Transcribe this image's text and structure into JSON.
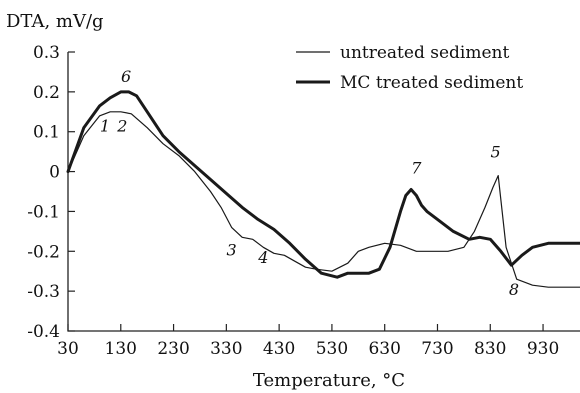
{
  "chart_data": {
    "type": "line",
    "ylabel": "DTA, mV/g",
    "xlabel": "Temperature, °C",
    "xlim": [
      30,
      1000
    ],
    "ylim": [
      -0.4,
      0.3
    ],
    "x_ticks": [
      30,
      130,
      230,
      330,
      430,
      530,
      630,
      730,
      830,
      930
    ],
    "x_tick_labels": [
      "30",
      "130",
      "230",
      "330",
      "430",
      "530",
      "630",
      "730",
      "830",
      "930"
    ],
    "y_ticks": [
      0.3,
      0.2,
      0.1,
      0,
      -0.1,
      -0.2,
      -0.3,
      -0.4
    ],
    "y_tick_labels": [
      "0.3",
      "0.2",
      "0.1",
      "0",
      "-0.1",
      "-0.2",
      "-0.3",
      "-0.4"
    ],
    "legend_position": "top-right",
    "series": [
      {
        "name": "untreated sediment",
        "style": "thin",
        "x": [
          30,
          60,
          90,
          110,
          130,
          150,
          180,
          210,
          240,
          270,
          300,
          320,
          340,
          360,
          380,
          400,
          420,
          440,
          460,
          480,
          500,
          530,
          560,
          580,
          600,
          630,
          660,
          690,
          720,
          750,
          780,
          800,
          820,
          835,
          845,
          860,
          880,
          910,
          940,
          970,
          1000
        ],
        "y": [
          0.0,
          0.09,
          0.14,
          0.15,
          0.15,
          0.145,
          0.11,
          0.07,
          0.04,
          0.0,
          -0.05,
          -0.09,
          -0.14,
          -0.165,
          -0.17,
          -0.19,
          -0.205,
          -0.21,
          -0.225,
          -0.24,
          -0.245,
          -0.25,
          -0.23,
          -0.2,
          -0.19,
          -0.18,
          -0.185,
          -0.2,
          -0.2,
          -0.2,
          -0.19,
          -0.15,
          -0.09,
          -0.04,
          -0.01,
          -0.19,
          -0.27,
          -0.285,
          -0.29,
          -0.29,
          -0.29
        ]
      },
      {
        "name": "MC treated sediment",
        "style": "thick",
        "x": [
          30,
          60,
          90,
          110,
          130,
          145,
          160,
          180,
          210,
          240,
          270,
          300,
          330,
          360,
          390,
          420,
          450,
          480,
          510,
          540,
          560,
          580,
          600,
          620,
          640,
          660,
          670,
          680,
          690,
          700,
          710,
          730,
          760,
          790,
          810,
          830,
          850,
          870,
          890,
          910,
          940,
          970,
          1000
        ],
        "y": [
          0.0,
          0.11,
          0.165,
          0.185,
          0.2,
          0.2,
          0.19,
          0.15,
          0.09,
          0.05,
          0.015,
          -0.02,
          -0.055,
          -0.09,
          -0.12,
          -0.145,
          -0.18,
          -0.22,
          -0.255,
          -0.265,
          -0.255,
          -0.255,
          -0.255,
          -0.245,
          -0.19,
          -0.1,
          -0.06,
          -0.045,
          -0.06,
          -0.085,
          -0.1,
          -0.12,
          -0.15,
          -0.17,
          -0.165,
          -0.17,
          -0.2,
          -0.235,
          -0.21,
          -0.19,
          -0.18,
          -0.18,
          -0.18
        ]
      }
    ],
    "annotations": [
      {
        "text": "1",
        "x": 100,
        "y": 0.1
      },
      {
        "text": "2",
        "x": 133,
        "y": 0.1
      },
      {
        "text": "6",
        "x": 140,
        "y": 0.225
      },
      {
        "text": "3",
        "x": 340,
        "y": -0.21
      },
      {
        "text": "4",
        "x": 400,
        "y": -0.23
      },
      {
        "text": "7",
        "x": 690,
        "y": -0.005
      },
      {
        "text": "5",
        "x": 840,
        "y": 0.035
      },
      {
        "text": "8",
        "x": 875,
        "y": -0.31
      }
    ]
  }
}
